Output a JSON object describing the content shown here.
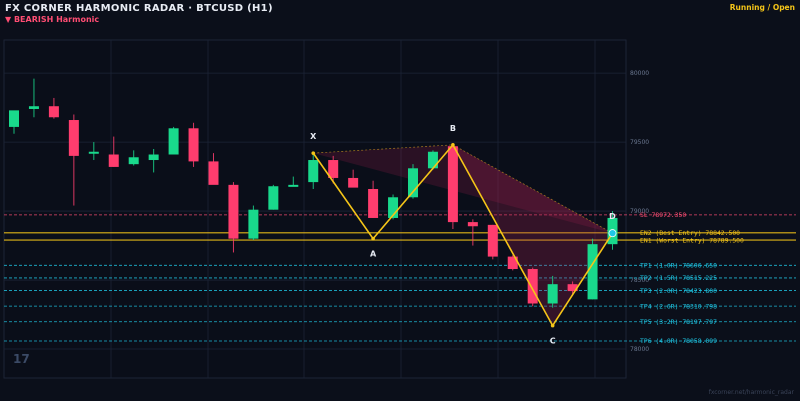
{
  "header": {
    "title": "FX CORNER HARMONIC RADAR  ·  BTCUSD (H1)",
    "subtitle": "▼ BEARISH  Harmonic",
    "status": "Running / Open"
  },
  "watermark": "17",
  "footer": "fxcorner.net/harmonic_radar",
  "chart_data": {
    "type": "candlestick",
    "yticks": [
      78000,
      78500,
      79000,
      79500,
      80000
    ],
    "ylim": [
      77790,
      80240
    ],
    "grid": true,
    "candles": [
      {
        "o": 79610,
        "h": 79720,
        "l": 79560,
        "c": 79730
      },
      {
        "o": 79740,
        "h": 79960,
        "l": 79680,
        "c": 79760
      },
      {
        "o": 79760,
        "h": 79820,
        "l": 79670,
        "c": 79680
      },
      {
        "o": 79660,
        "h": 79700,
        "l": 79040,
        "c": 79400
      },
      {
        "o": 79420,
        "h": 79500,
        "l": 79370,
        "c": 79430
      },
      {
        "o": 79410,
        "h": 79540,
        "l": 79320,
        "c": 79320
      },
      {
        "o": 79340,
        "h": 79440,
        "l": 79330,
        "c": 79390
      },
      {
        "o": 79370,
        "h": 79450,
        "l": 79280,
        "c": 79410
      },
      {
        "o": 79410,
        "h": 79610,
        "l": 79410,
        "c": 79600
      },
      {
        "o": 79600,
        "h": 79640,
        "l": 79320,
        "c": 79360
      },
      {
        "o": 79360,
        "h": 79420,
        "l": 79200,
        "c": 79190
      },
      {
        "o": 79190,
        "h": 79210,
        "l": 78700,
        "c": 78800
      },
      {
        "o": 78800,
        "h": 79040,
        "l": 78790,
        "c": 79010
      },
      {
        "o": 79010,
        "h": 79190,
        "l": 79010,
        "c": 79180
      },
      {
        "o": 79180,
        "h": 79250,
        "l": 79180,
        "c": 79190
      },
      {
        "o": 79210,
        "h": 79420,
        "l": 79160,
        "c": 79370
      },
      {
        "o": 79370,
        "h": 79400,
        "l": 79200,
        "c": 79240
      },
      {
        "o": 79240,
        "h": 79300,
        "l": 79180,
        "c": 79170
      },
      {
        "o": 79160,
        "h": 79220,
        "l": 78950,
        "c": 78950
      },
      {
        "o": 78950,
        "h": 79120,
        "l": 78940,
        "c": 79100
      },
      {
        "o": 79100,
        "h": 79340,
        "l": 79090,
        "c": 79310
      },
      {
        "o": 79310,
        "h": 79440,
        "l": 79300,
        "c": 79430
      },
      {
        "o": 79470,
        "h": 79480,
        "l": 78870,
        "c": 78920
      },
      {
        "o": 78920,
        "h": 78940,
        "l": 78750,
        "c": 78890
      },
      {
        "o": 78900,
        "h": 78900,
        "l": 78650,
        "c": 78670
      },
      {
        "o": 78670,
        "h": 78680,
        "l": 78570,
        "c": 78580
      },
      {
        "o": 78580,
        "h": 78590,
        "l": 78310,
        "c": 78330
      },
      {
        "o": 78330,
        "h": 78530,
        "l": 78300,
        "c": 78470
      },
      {
        "o": 78470,
        "h": 78490,
        "l": 78390,
        "c": 78420
      },
      {
        "o": 78360,
        "h": 78800,
        "l": 78360,
        "c": 78760
      },
      {
        "o": 78760,
        "h": 79000,
        "l": 78720,
        "c": 78950
      }
    ],
    "pattern": {
      "X": {
        "i": 15,
        "price": 79420
      },
      "A": {
        "i": 18,
        "price": 78800
      },
      "B": {
        "i": 22,
        "price": 79480
      },
      "C": {
        "i": 27,
        "price": 78170
      },
      "D": {
        "i": 30,
        "price": 78840
      }
    },
    "levels": [
      {
        "label": "SL",
        "value": "78972.350",
        "color": "#ff4d73"
      },
      {
        "label": "EN2 (Best Entry)",
        "value": "78842.500",
        "color": "#f5c518"
      },
      {
        "label": "EN1 (Worst Entry)",
        "value": "78789.500",
        "color": "#f5c518"
      },
      {
        "label": "TP1 (1.0R)",
        "value": "78606.650",
        "color": "#1ec8e6"
      },
      {
        "label": "TP2 (1.5R)",
        "value": "78515.225",
        "color": "#1ec8e6"
      },
      {
        "label": "TP3 (2.0R)",
        "value": "78423.800",
        "color": "#1ec8e6"
      },
      {
        "label": "TP4 (2.6R)",
        "value": "78310.798",
        "color": "#1ec8e6"
      },
      {
        "label": "TP5 (3.2R)",
        "value": "78197.797",
        "color": "#1ec8e6"
      },
      {
        "label": "TP6 (4.0R)",
        "value": "78058.099",
        "color": "#1ec8e6"
      }
    ],
    "colors": {
      "up": "#19d98c",
      "down": "#ff3d6e",
      "pattern": "#f5c518",
      "grid": "#1c2436"
    }
  }
}
